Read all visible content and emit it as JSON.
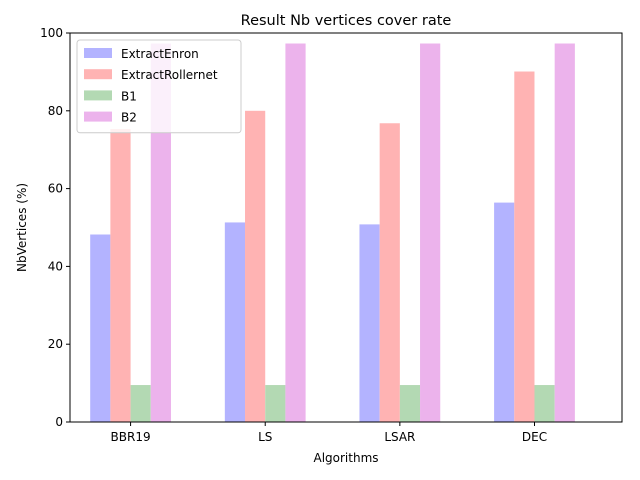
{
  "chart_data": {
    "type": "bar",
    "title": "Result Nb vertices cover rate",
    "xlabel": "Algorithms",
    "ylabel": "NbVertices (%)",
    "categories": [
      "BBR19",
      "LS",
      "LSAR",
      "DEC"
    ],
    "ylim": [
      0,
      100
    ],
    "yticks": [
      0,
      20,
      40,
      60,
      80,
      100
    ],
    "grid": false,
    "legend_position": "top-left",
    "series": [
      {
        "name": "ExtractEnron",
        "color": "#b3b3ff",
        "values": [
          48.2,
          51.3,
          50.8,
          56.4
        ]
      },
      {
        "name": "ExtractRollernet",
        "color": "#ffb3b3",
        "values": [
          75.3,
          80.0,
          76.8,
          90.1
        ]
      },
      {
        "name": "B1",
        "color": "#b3d9b3",
        "values": [
          9.5,
          9.5,
          9.5,
          9.5
        ]
      },
      {
        "name": "B2",
        "color": "#ecb3ec",
        "values": [
          97.3,
          97.3,
          97.3,
          97.3
        ]
      }
    ]
  }
}
